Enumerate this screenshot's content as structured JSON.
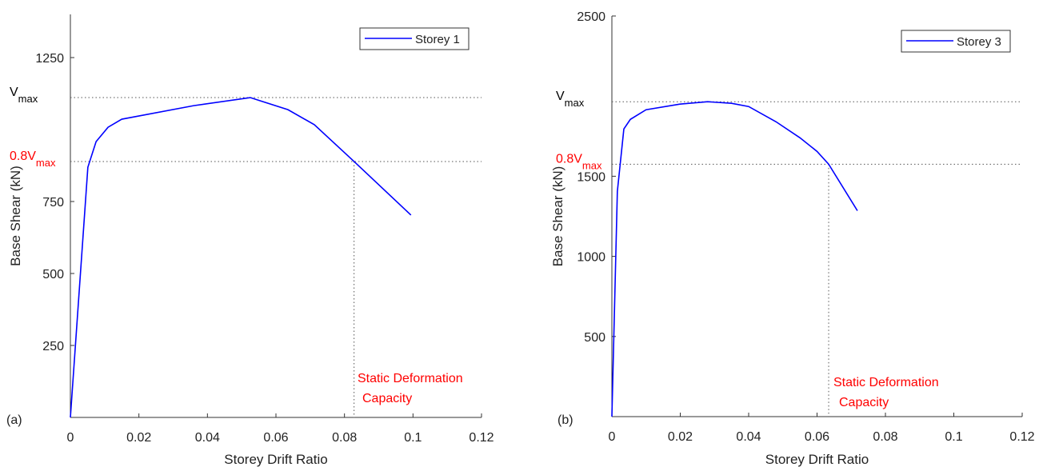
{
  "chart_data": [
    {
      "type": "line",
      "panel_label": "(a)",
      "x_label": "Storey Drift Ratio",
      "y_label": "Base Shear (kN)",
      "xlim": [
        0,
        0.12
      ],
      "xticks": [
        0,
        0.02,
        0.04,
        0.06,
        0.08,
        0.1,
        0.12
      ],
      "ylim": [
        0,
        1400
      ],
      "yticks": [
        250,
        500,
        750,
        1250
      ],
      "legend": "upper right",
      "series": [
        {
          "name": "Storey 1",
          "color": "#0000ff",
          "x": [
            0,
            0.0051,
            0.0075,
            0.011,
            0.015,
            0.036,
            0.0525,
            0.0635,
            0.0712,
            0.0828,
            0.0994
          ],
          "values": [
            0,
            869,
            958,
            1008,
            1036,
            1083,
            1111,
            1069,
            1017,
            889,
            703
          ]
        }
      ],
      "annotations": [
        {
          "label": "V",
          "label_sub": "max",
          "y": 1111,
          "color": "#000000"
        },
        {
          "label": "0.8V",
          "label_sub": "max",
          "y": 889,
          "color": "#ff0000"
        },
        {
          "label": "Static Deformation",
          "label_line2": "Capacity",
          "x": 0.0828,
          "y": 889,
          "color": "#ff0000"
        }
      ]
    },
    {
      "type": "line",
      "panel_label": "(b)",
      "x_label": "Storey Drift Ratio",
      "y_label": "Base Shear (kN)",
      "xlim": [
        0,
        0.12
      ],
      "xticks": [
        0,
        0.02,
        0.04,
        0.06,
        0.08,
        0.1,
        0.12
      ],
      "ylim": [
        0,
        2500
      ],
      "yticks": [
        500,
        1000,
        1500,
        2500
      ],
      "legend": "upper right",
      "series": [
        {
          "name": "Storey 3",
          "color": "#0000ff",
          "x": [
            0,
            0.0016,
            0.0035,
            0.0054,
            0.01,
            0.0199,
            0.028,
            0.035,
            0.04,
            0.048,
            0.055,
            0.06,
            0.0634,
            0.0718
          ],
          "values": [
            0,
            1405,
            1795,
            1855,
            1915,
            1950,
            1965,
            1955,
            1935,
            1840,
            1740,
            1655,
            1575,
            1285
          ]
        }
      ],
      "annotations": [
        {
          "label": "V",
          "label_sub": "max",
          "y": 1965,
          "color": "#000000"
        },
        {
          "label": "0.8V",
          "label_sub": "max",
          "y": 1575,
          "color": "#ff0000"
        },
        {
          "label": "Static Deformation",
          "label_line2": "Capacity",
          "x": 0.0634,
          "y": 1575,
          "color": "#ff0000"
        }
      ]
    }
  ]
}
